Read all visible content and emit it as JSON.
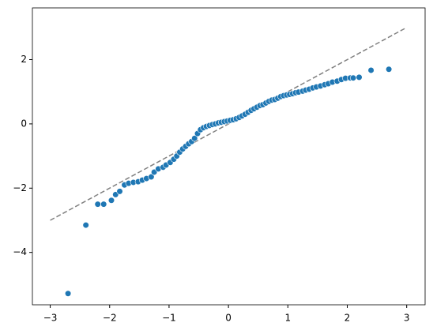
{
  "chart_data": {
    "type": "scatter",
    "x": [
      -2.7,
      -2.4,
      -2.2,
      -2.1,
      -1.97,
      -1.9,
      -1.83,
      -1.75,
      -1.68,
      -1.6,
      -1.52,
      -1.45,
      -1.38,
      -1.3,
      -1.25,
      -1.18,
      -1.1,
      -1.05,
      -0.98,
      -0.92,
      -0.87,
      -0.82,
      -0.77,
      -0.72,
      -0.67,
      -0.62,
      -0.57,
      -0.52,
      -0.47,
      -0.42,
      -0.37,
      -0.32,
      -0.27,
      -0.22,
      -0.17,
      -0.12,
      -0.07,
      -0.02,
      0.03,
      0.08,
      0.13,
      0.18,
      0.23,
      0.28,
      0.33,
      0.38,
      0.43,
      0.48,
      0.53,
      0.58,
      0.63,
      0.68,
      0.73,
      0.78,
      0.83,
      0.88,
      0.93,
      0.98,
      1.03,
      1.08,
      1.13,
      1.18,
      1.25,
      1.3,
      1.36,
      1.42,
      1.48,
      1.55,
      1.62,
      1.68,
      1.75,
      1.83,
      1.9,
      1.97,
      2.05,
      2.1,
      2.2,
      2.4,
      2.7
    ],
    "values": [
      -5.28,
      -3.15,
      -2.5,
      -2.5,
      -2.38,
      -2.2,
      -2.1,
      -1.9,
      -1.85,
      -1.82,
      -1.8,
      -1.75,
      -1.7,
      -1.65,
      -1.5,
      -1.4,
      -1.35,
      -1.28,
      -1.2,
      -1.1,
      -1.0,
      -0.88,
      -0.78,
      -0.7,
      -0.62,
      -0.55,
      -0.45,
      -0.3,
      -0.18,
      -0.12,
      -0.08,
      -0.05,
      -0.02,
      0.0,
      0.03,
      0.05,
      0.07,
      0.09,
      0.11,
      0.13,
      0.16,
      0.2,
      0.25,
      0.3,
      0.36,
      0.42,
      0.47,
      0.52,
      0.57,
      0.6,
      0.65,
      0.7,
      0.74,
      0.76,
      0.8,
      0.85,
      0.88,
      0.9,
      0.92,
      0.94,
      0.97,
      0.99,
      1.02,
      1.05,
      1.08,
      1.12,
      1.15,
      1.18,
      1.22,
      1.25,
      1.3,
      1.33,
      1.38,
      1.42,
      1.43,
      1.43,
      1.45,
      1.67,
      1.7
    ],
    "color": "#1f77b4",
    "reference_line": {
      "x": [
        -3,
        3
      ],
      "y": [
        -3,
        3
      ],
      "color": "#808080",
      "dashed": true
    },
    "xlim": [
      -3.3,
      3.31
    ],
    "ylim": [
      -5.63,
      3.61
    ],
    "xticks": [
      {
        "value": -3,
        "label": "−3"
      },
      {
        "value": -2,
        "label": "−2"
      },
      {
        "value": -1,
        "label": "−1"
      },
      0,
      1,
      2,
      3
    ],
    "yticks": [
      {
        "value": -4,
        "label": "−4"
      },
      {
        "value": -2,
        "label": "−2"
      },
      0,
      2
    ]
  }
}
